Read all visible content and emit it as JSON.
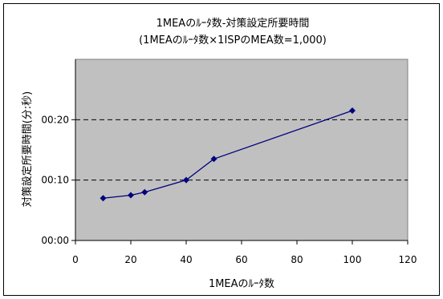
{
  "chart_data": {
    "type": "line",
    "title": "1MEAのﾙｰﾀ数-対策設定所要時間",
    "subtitle": "(1MEAのﾙｰﾀ数×1ISPのMEA数=1,000)",
    "xlabel": "1MEAのﾙｰﾀ数",
    "ylabel": "対策設定所要時間(分:秒)",
    "xlim": [
      0,
      120
    ],
    "ylim": [
      0,
      30
    ],
    "x_ticks": [
      0,
      20,
      40,
      60,
      80,
      100,
      120
    ],
    "x_tick_labels": [
      "0",
      "20",
      "40",
      "60",
      "80",
      "100",
      "120"
    ],
    "y_ticks": [
      0,
      10,
      20
    ],
    "y_tick_labels": [
      "00:00",
      "00:10",
      "00:20"
    ],
    "grid": "horizontal-dashed",
    "legend": "none",
    "series": [
      {
        "x": [
          10,
          20,
          25,
          40,
          50,
          100
        ],
        "values": [
          7,
          7.5,
          8,
          10,
          13.5,
          21.5
        ]
      }
    ],
    "colors": {
      "plot_bg": "#c0c0c0",
      "line": "#000080",
      "marker": "#000080",
      "grid": "#000000"
    }
  }
}
